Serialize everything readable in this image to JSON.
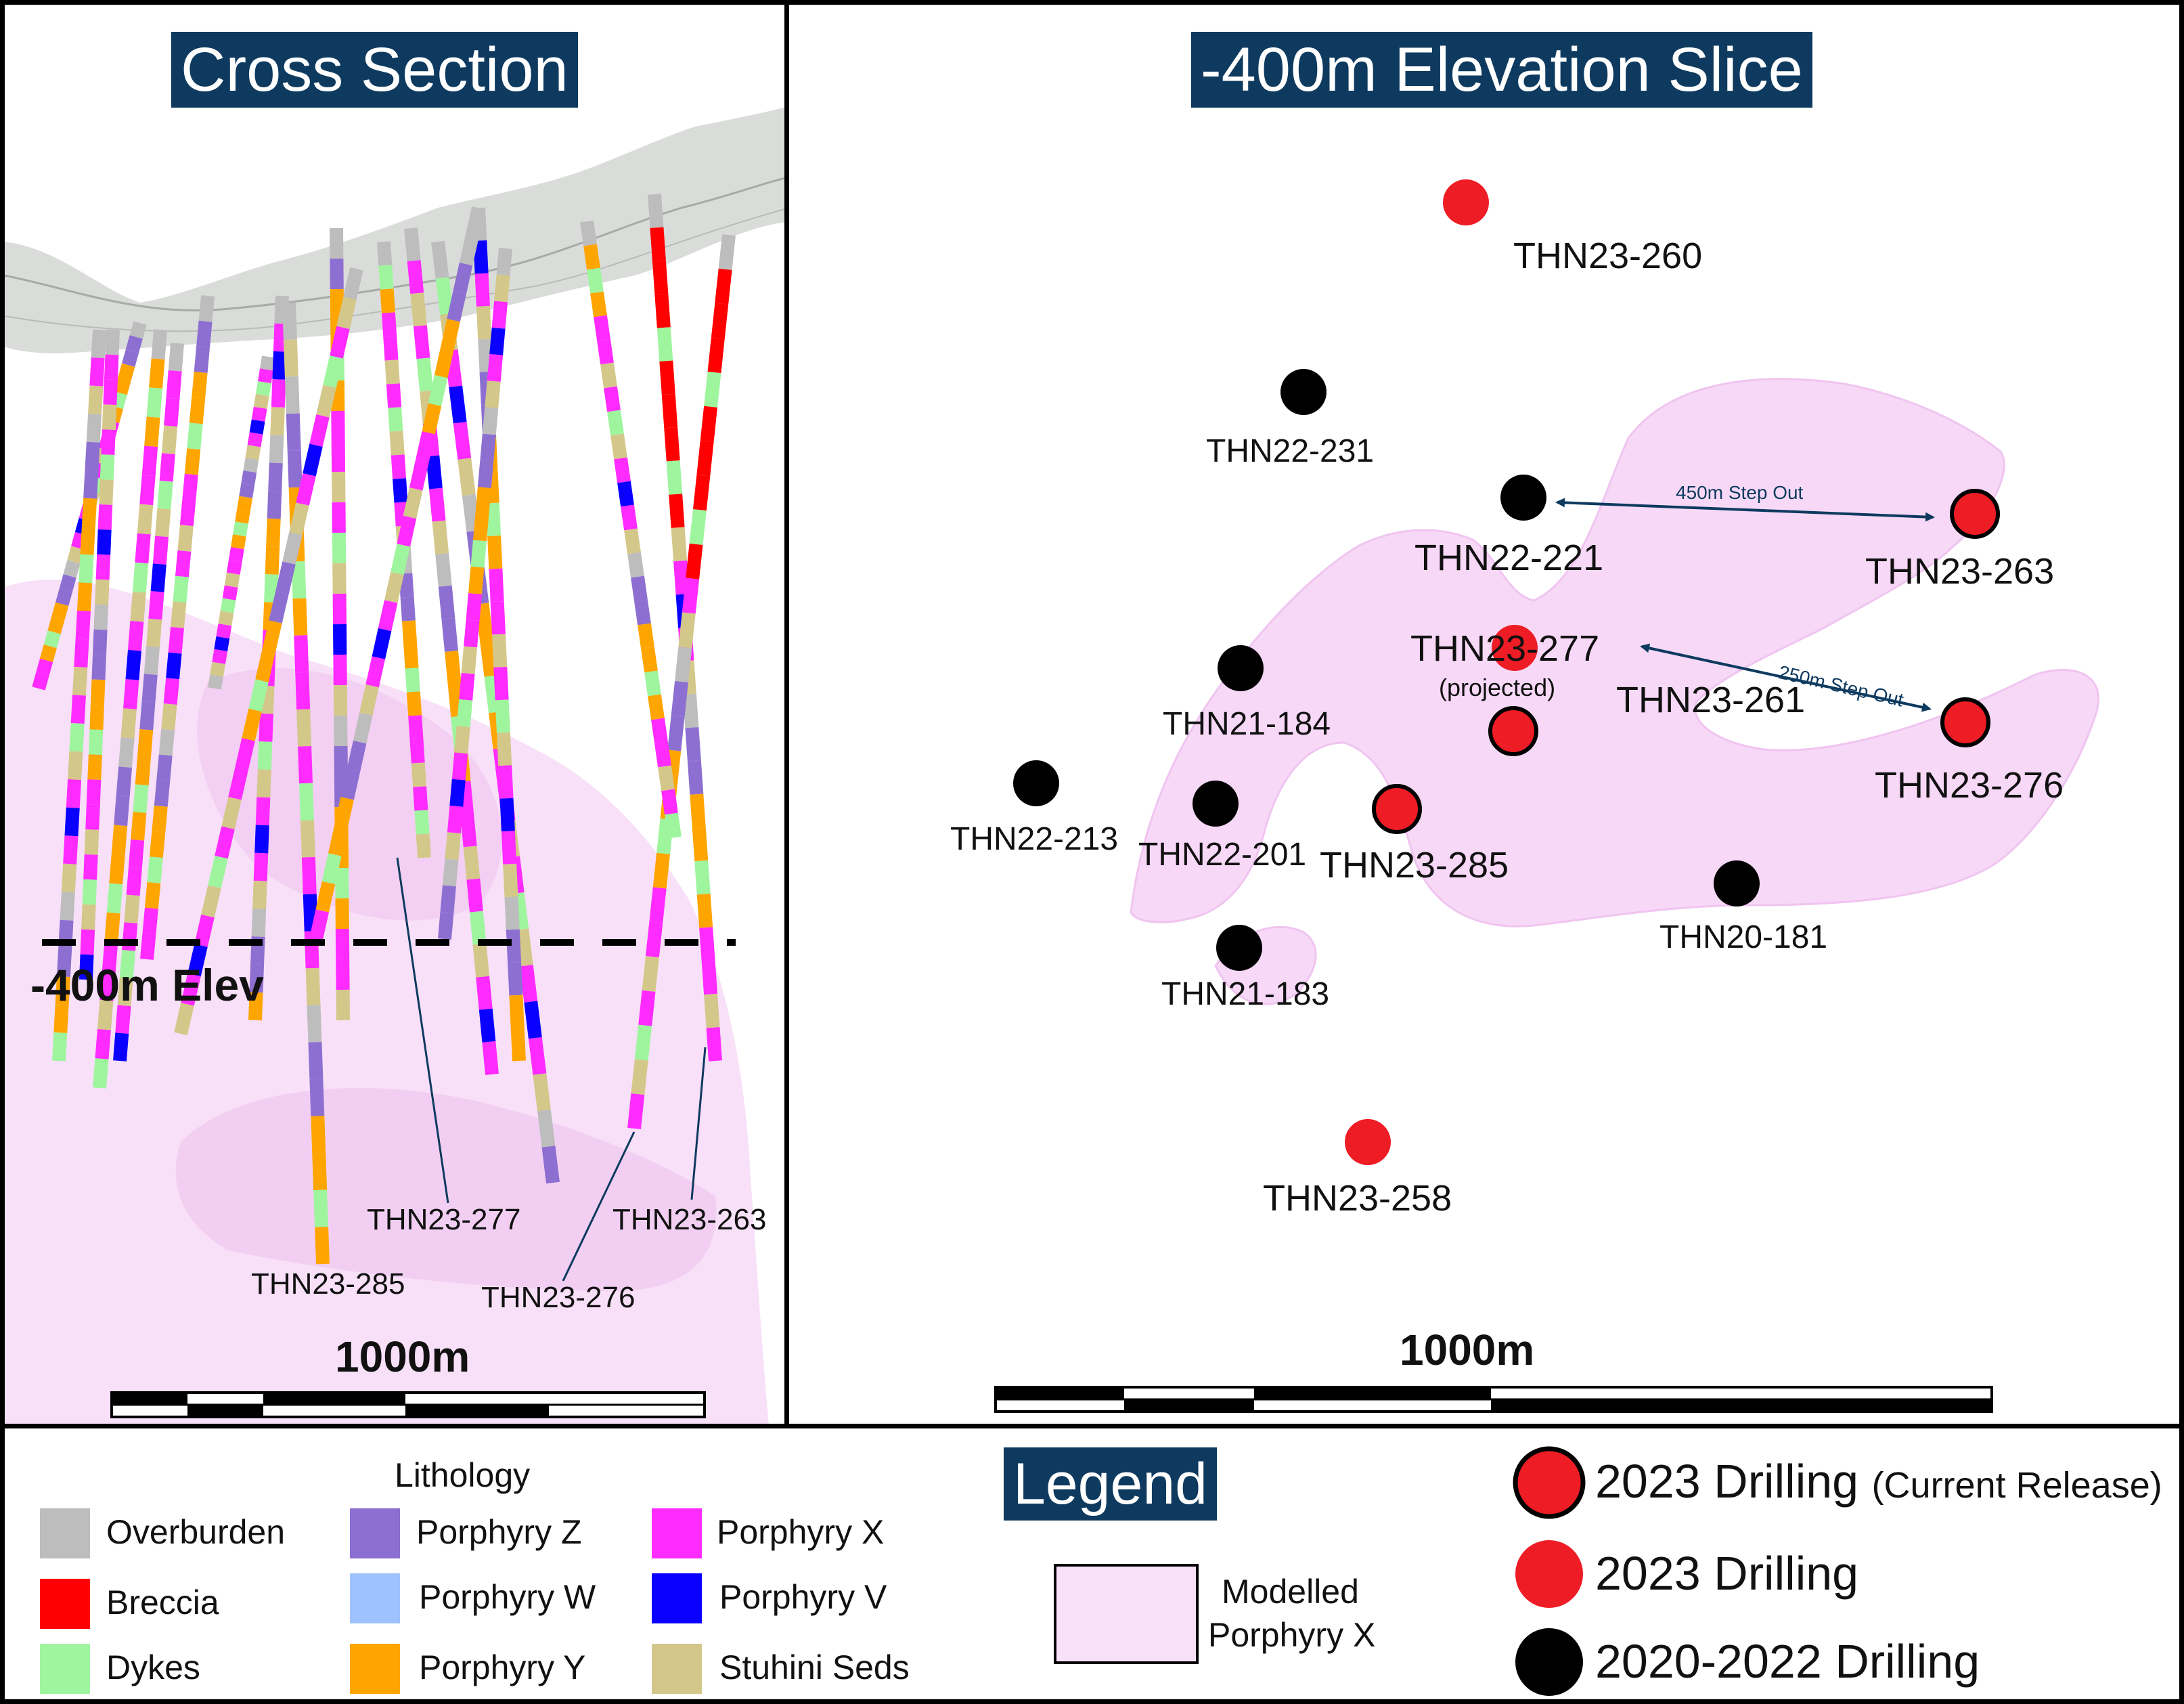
{
  "cross_section": {
    "title": "Cross Section",
    "elevation_label": "-400m Elev",
    "scale_label": "1000m",
    "hole_labels": [
      {
        "id": "THN23-277"
      },
      {
        "id": "THN23-285"
      },
      {
        "id": "THN23-276"
      },
      {
        "id": "THN23-263"
      }
    ]
  },
  "elevation_slice": {
    "title": "-400m Elevation Slice",
    "scale_label": "1000m",
    "step_outs": [
      {
        "label": "450m Step Out"
      },
      {
        "label": "250m Step Out"
      }
    ],
    "holes": [
      {
        "id": "THN23-260",
        "category": "2023"
      },
      {
        "id": "THN22-231",
        "category": "2020-2022"
      },
      {
        "id": "THN22-221",
        "category": "2020-2022"
      },
      {
        "id": "THN23-263",
        "category": "2023-current"
      },
      {
        "id": "THN23-277",
        "note": "(projected)",
        "category": "2023-current"
      },
      {
        "id": "THN23-261",
        "category": "2023"
      },
      {
        "id": "THN21-184",
        "category": "2020-2022"
      },
      {
        "id": "THN23-276",
        "category": "2023-current"
      },
      {
        "id": "THN22-213",
        "category": "2020-2022"
      },
      {
        "id": "THN22-201",
        "category": "2020-2022"
      },
      {
        "id": "THN23-285",
        "category": "2023-current"
      },
      {
        "id": "THN20-181",
        "category": "2020-2022"
      },
      {
        "id": "THN21-183",
        "category": "2020-2022"
      },
      {
        "id": "THN23-258",
        "category": "2023"
      }
    ]
  },
  "legend": {
    "title": "Legend",
    "lithology_title": "Lithology",
    "lithology": [
      {
        "label": "Overburden",
        "color": "#bdbdbd"
      },
      {
        "label": "Breccia",
        "color": "#ff0000"
      },
      {
        "label": "Dykes",
        "color": "#9ef59e"
      },
      {
        "label": "Porphyry Z",
        "color": "#8c6fd1"
      },
      {
        "label": "Porphyry W",
        "color": "#9ec2ff"
      },
      {
        "label": "Porphyry Y",
        "color": "#ffa500"
      },
      {
        "label": "Porphyry X",
        "color": "#ff2bff"
      },
      {
        "label": "Porphyry V",
        "color": "#0a00ff"
      },
      {
        "label": "Stuhini Seds",
        "color": "#d4c78a"
      }
    ],
    "modelled_label_line1": "Modelled",
    "modelled_label_line2": "Porphyry X",
    "drilling": [
      {
        "label": "2023 Drilling",
        "suffix": "(Current Release)",
        "color": "#ee1c25",
        "outlined": true
      },
      {
        "label": "2023 Drilling",
        "suffix": "",
        "color": "#ee1c25",
        "outlined": false
      },
      {
        "label": "2020-2022 Drilling",
        "suffix": "",
        "color": "#000000",
        "outlined": false
      }
    ]
  },
  "colors": {
    "title_bg": "#0e3a5f",
    "modelled_fill": "#f6d9f6",
    "red": "#ee1c25",
    "black": "#000000"
  }
}
